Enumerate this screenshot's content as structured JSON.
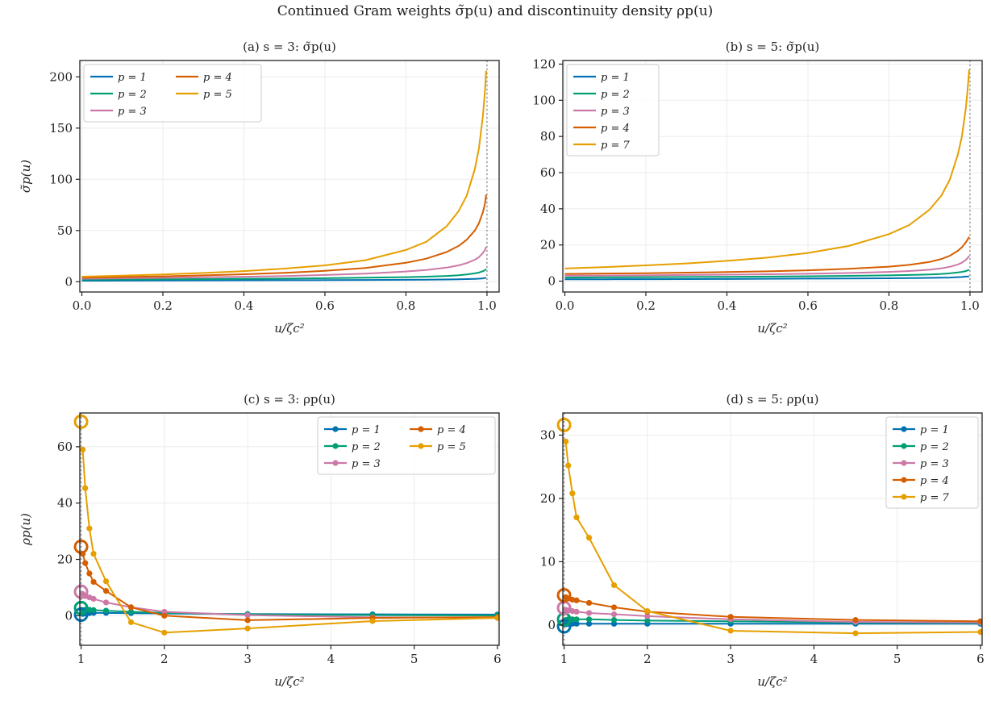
{
  "figure_title": "Continued Gram weights σ̃p(u) and discontinuity density ρp(u)",
  "chart_data": [
    {
      "id": "a",
      "type": "line",
      "title": "(a)  s = 3: σ̃p(u)",
      "xlabel": "u/ζc²",
      "ylabel": "σ̃p(u)",
      "xlim": [
        -0.005,
        1.03
      ],
      "ylim": [
        -10,
        216
      ],
      "xticks": [
        0.0,
        0.2,
        0.4,
        0.6,
        0.8,
        1.0
      ],
      "xtick_labels": [
        "0.0",
        "0.2",
        "0.4",
        "0.6",
        "0.8",
        "1.0"
      ],
      "yticks": [
        0,
        50,
        100,
        150,
        200
      ],
      "ytick_labels": [
        "0",
        "50",
        "100",
        "150",
        "200"
      ],
      "grid": true,
      "vline_dotted": 1.0,
      "legend": {
        "position": "top-left",
        "columns": 2
      },
      "x": [
        0.0,
        0.1,
        0.2,
        0.3,
        0.4,
        0.5,
        0.6,
        0.7,
        0.8,
        0.85,
        0.9,
        0.93,
        0.95,
        0.97,
        0.98,
        0.99,
        0.995,
        0.998
      ],
      "series": [
        {
          "name": "p = 1",
          "color": "#0072b2",
          "values": [
            1.0,
            1.1,
            1.2,
            1.3,
            1.4,
            1.5,
            1.6,
            1.7,
            1.9,
            2.0,
            2.2,
            2.4,
            2.6,
            2.8,
            3.0,
            3.3,
            3.6,
            4.0
          ]
        },
        {
          "name": "p = 2",
          "color": "#009e73",
          "values": [
            2.0,
            2.2,
            2.4,
            2.6,
            2.9,
            3.1,
            3.5,
            3.9,
            4.5,
            5.0,
            5.7,
            6.4,
            7.1,
            8.2,
            9.0,
            10.3,
            11.3,
            12.5
          ]
        },
        {
          "name": "p = 3",
          "color": "#cc79a7",
          "values": [
            3.0,
            3.4,
            3.8,
            4.3,
            4.9,
            5.6,
            6.6,
            7.9,
            10.0,
            11.5,
            13.8,
            16.0,
            18.2,
            21.5,
            24.0,
            28.0,
            31.0,
            34.0
          ]
        },
        {
          "name": "p = 4",
          "color": "#d55e00",
          "values": [
            4.0,
            4.6,
            5.3,
            6.2,
            7.3,
            8.7,
            10.6,
            13.5,
            18.5,
            22.5,
            29.0,
            35.0,
            41.0,
            50.0,
            57.0,
            68.0,
            76.0,
            85.0
          ]
        },
        {
          "name": "p = 5",
          "color": "#e69f00",
          "values": [
            5.0,
            6.0,
            7.2,
            8.6,
            10.4,
            12.8,
            16.0,
            21.0,
            31.0,
            39.0,
            54.0,
            69.0,
            84.0,
            110.0,
            130.0,
            162.0,
            186.0,
            206.0
          ]
        }
      ]
    },
    {
      "id": "b",
      "type": "line",
      "title": "(b)  s = 5: σ̃p(u)",
      "xlabel": "u/ζc²",
      "ylabel": "",
      "xlim": [
        -0.005,
        1.03
      ],
      "ylim": [
        -6,
        122
      ],
      "xticks": [
        0.0,
        0.2,
        0.4,
        0.6,
        0.8,
        1.0
      ],
      "xtick_labels": [
        "0.0",
        "0.2",
        "0.4",
        "0.6",
        "0.8",
        "1.0"
      ],
      "yticks": [
        0,
        20,
        40,
        60,
        80,
        100,
        120
      ],
      "ytick_labels": [
        "0",
        "20",
        "40",
        "60",
        "80",
        "100",
        "120"
      ],
      "grid": true,
      "vline_dotted": 1.0,
      "legend": {
        "position": "top-left",
        "columns": 1
      },
      "x": [
        0.0,
        0.1,
        0.2,
        0.3,
        0.4,
        0.5,
        0.6,
        0.7,
        0.8,
        0.85,
        0.9,
        0.93,
        0.95,
        0.97,
        0.98,
        0.99,
        0.995,
        0.998
      ],
      "series": [
        {
          "name": "p = 1",
          "color": "#0072b2",
          "values": [
            1.0,
            1.05,
            1.1,
            1.15,
            1.2,
            1.3,
            1.4,
            1.5,
            1.6,
            1.7,
            1.8,
            1.9,
            2.0,
            2.2,
            2.3,
            2.5,
            2.6,
            2.7
          ]
        },
        {
          "name": "p = 2",
          "color": "#009e73",
          "values": [
            2.0,
            2.1,
            2.2,
            2.3,
            2.4,
            2.5,
            2.7,
            2.9,
            3.2,
            3.4,
            3.7,
            4.0,
            4.3,
            4.8,
            5.1,
            5.6,
            6.0,
            6.3
          ]
        },
        {
          "name": "p = 3",
          "color": "#cc79a7",
          "values": [
            3.0,
            3.1,
            3.2,
            3.4,
            3.6,
            3.8,
            4.1,
            4.5,
            5.1,
            5.6,
            6.3,
            7.1,
            7.9,
            9.2,
            10.2,
            11.8,
            13.0,
            14.0
          ]
        },
        {
          "name": "p = 4",
          "color": "#d55e00",
          "values": [
            4.0,
            4.2,
            4.4,
            4.7,
            5.0,
            5.4,
            6.0,
            6.8,
            8.0,
            9.0,
            10.6,
            12.3,
            14.0,
            16.8,
            18.7,
            21.5,
            23.3,
            24.5
          ]
        },
        {
          "name": "p = 7",
          "color": "#e69f00",
          "values": [
            7.0,
            7.8,
            8.7,
            9.8,
            11.2,
            13.0,
            15.6,
            19.4,
            26.0,
            31.0,
            39.5,
            47.5,
            56.0,
            70.0,
            80.0,
            96.0,
            108.0,
            117.0
          ]
        }
      ]
    },
    {
      "id": "c",
      "type": "line",
      "title": "(c)  s = 3: ρp(u)",
      "xlabel": "u/ζc²",
      "ylabel": "ρp(u)",
      "xlim": [
        0.985,
        6.02
      ],
      "ylim": [
        -10.5,
        72
      ],
      "xticks": [
        1,
        2,
        3,
        4,
        5,
        6
      ],
      "xtick_labels": [
        "1",
        "2",
        "3",
        "4",
        "5",
        "6"
      ],
      "yticks": [
        0,
        20,
        40,
        60
      ],
      "ytick_labels": [
        "0",
        "20",
        "40",
        "60"
      ],
      "grid": true,
      "vline_dotted": 1.0,
      "legend": {
        "position": "top-right",
        "columns": 2
      },
      "x": [
        1.02,
        1.05,
        1.1,
        1.15,
        1.3,
        1.6,
        2.0,
        3.0,
        4.5,
        6.0
      ],
      "series": [
        {
          "name": "p = 1",
          "color": "#0072b2",
          "endpoint": 0.4,
          "values": [
            0.6,
            0.8,
            0.9,
            1.0,
            1.0,
            0.9,
            0.8,
            0.6,
            0.5,
            0.4
          ]
        },
        {
          "name": "p = 2",
          "color": "#009e73",
          "endpoint": 2.7,
          "values": [
            2.0,
            2.1,
            2.1,
            2.0,
            1.8,
            1.4,
            1.0,
            0.5,
            0.2,
            0.1
          ]
        },
        {
          "name": "p = 3",
          "color": "#cc79a7",
          "endpoint": 8.5,
          "values": [
            7.7,
            7.0,
            6.5,
            6.0,
            4.7,
            3.0,
            1.4,
            0.2,
            -0.6,
            -0.6
          ]
        },
        {
          "name": "p = 4",
          "color": "#d55e00",
          "endpoint": 24.5,
          "values": [
            22.0,
            18.7,
            15.0,
            12.0,
            8.8,
            3.0,
            0.0,
            -1.6,
            -0.8,
            -0.5
          ]
        },
        {
          "name": "p = 5",
          "color": "#e69f00",
          "endpoint": 68.9,
          "values": [
            59.0,
            45.3,
            31.0,
            22.0,
            12.2,
            -2.3,
            -6.0,
            -4.5,
            -1.9,
            -0.8
          ]
        }
      ]
    },
    {
      "id": "d",
      "type": "line",
      "title": "(d)  s = 5: ρp(u)",
      "xlabel": "u/ζc²",
      "ylabel": "",
      "xlim": [
        0.985,
        6.02
      ],
      "ylim": [
        -3.2,
        33.5
      ],
      "xticks": [
        1,
        2,
        3,
        4,
        5,
        6
      ],
      "xtick_labels": [
        "1",
        "2",
        "3",
        "4",
        "5",
        "6"
      ],
      "yticks": [
        0,
        10,
        20,
        30
      ],
      "ytick_labels": [
        "0",
        "10",
        "20",
        "30"
      ],
      "grid": true,
      "vline_dotted": 1.0,
      "legend": {
        "position": "top-right",
        "columns": 1
      },
      "x": [
        1.02,
        1.05,
        1.1,
        1.15,
        1.3,
        1.6,
        2.0,
        3.0,
        4.5,
        6.0
      ],
      "series": [
        {
          "name": "p = 1",
          "color": "#0072b2",
          "endpoint": -0.2,
          "values": [
            0.1,
            0.2,
            0.2,
            0.2,
            0.2,
            0.2,
            0.2,
            0.2,
            0.2,
            0.2
          ]
        },
        {
          "name": "p = 2",
          "color": "#009e73",
          "endpoint": 0.9,
          "values": [
            0.8,
            0.9,
            0.9,
            0.9,
            0.9,
            0.8,
            0.7,
            0.6,
            0.4,
            0.3
          ]
        },
        {
          "name": "p = 3",
          "color": "#cc79a7",
          "endpoint": 2.7,
          "values": [
            2.4,
            2.3,
            2.2,
            2.1,
            1.9,
            1.7,
            1.4,
            0.9,
            0.5,
            0.4
          ]
        },
        {
          "name": "p = 4",
          "color": "#d55e00",
          "endpoint": 4.7,
          "values": [
            4.4,
            4.2,
            4.0,
            3.9,
            3.5,
            2.8,
            2.1,
            1.3,
            0.8,
            0.6
          ]
        },
        {
          "name": "p = 7",
          "color": "#e69f00",
          "endpoint": 31.6,
          "values": [
            29.0,
            25.2,
            20.8,
            17.0,
            13.8,
            6.3,
            2.2,
            -0.9,
            -1.3,
            -1.1
          ]
        }
      ]
    }
  ]
}
